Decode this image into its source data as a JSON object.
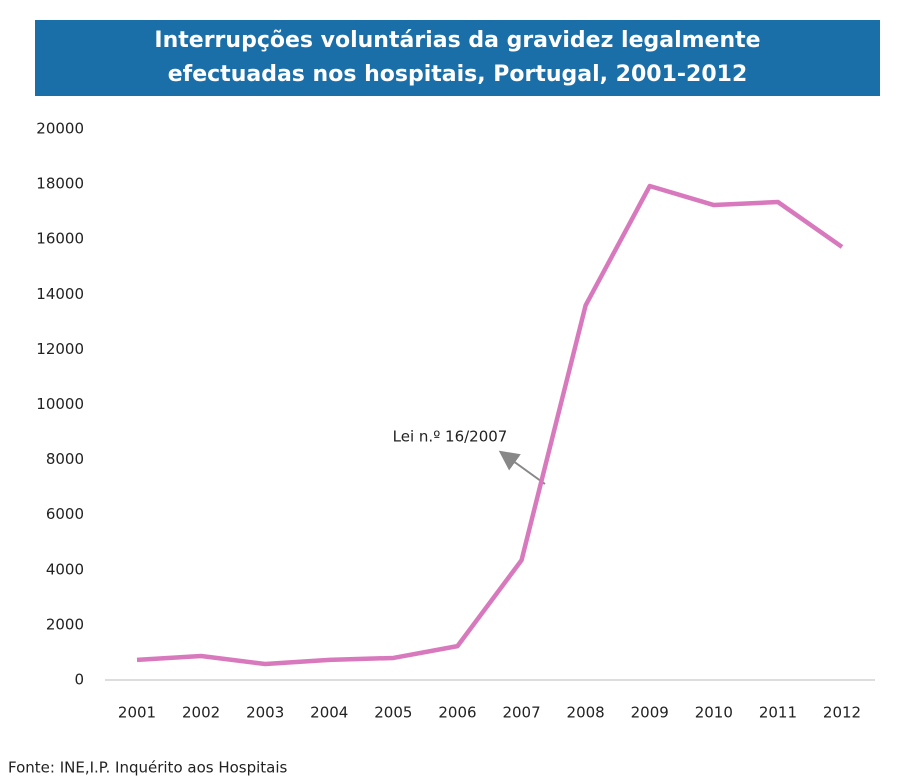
{
  "chart_data": {
    "type": "line",
    "title": "Interrupções voluntárias da gravidez legalmente efectuadas nos hospitais, Portugal, 2001-2012",
    "categories": [
      "2001",
      "2002",
      "2003",
      "2004",
      "2005",
      "2006",
      "2007",
      "2008",
      "2009",
      "2010",
      "2011",
      "2012"
    ],
    "series": [
      {
        "name": "Interrupções voluntárias da gravidez",
        "color": "#d879bd",
        "values": [
          730,
          870,
          580,
          730,
          800,
          1230,
          4350,
          13600,
          17930,
          17240,
          17350,
          15720
        ]
      }
    ],
    "ylim": [
      0,
      20000
    ],
    "yticks": [
      0,
      2000,
      4000,
      6000,
      8000,
      10000,
      12000,
      14000,
      16000,
      18000,
      20000
    ],
    "grid": false,
    "legend": false,
    "annotation": "Lei n.º 16/2007",
    "source": "Fonte:  INE,I.P.  Inquérito aos Hospitais"
  }
}
